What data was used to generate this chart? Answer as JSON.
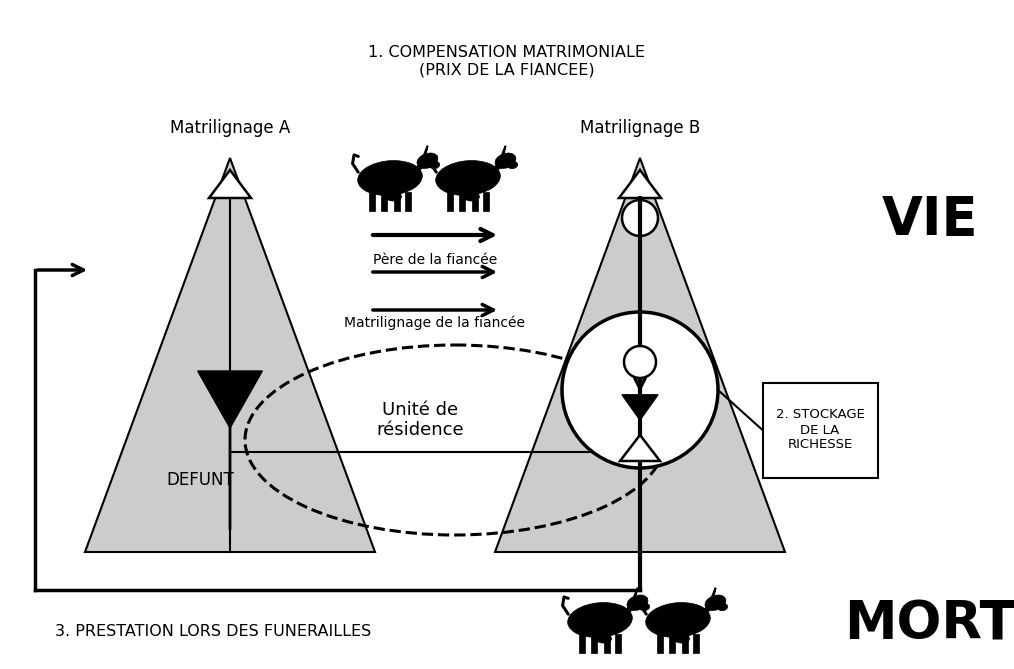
{
  "title_top": "1. COMPENSATION MATRIMONIALE\n(PRIX DE LA FIANCEE)",
  "label_matA": "Matrilignage A",
  "label_matB": "Matrilignage B",
  "label_vie": "VIE",
  "label_mort": "MORT",
  "label_defunt": "DEFUNT",
  "label_unite": "Unité de\nrésidence",
  "label_pere": "Père de la fiancée",
  "label_matrilignage_fiancee": "Matrilignage de la fiancée",
  "label_stockage": "2. STOCKAGE\nDE LA\nRICHESSE",
  "label_prestation": "3. PRESTATION LORS DES FUNERAILLES",
  "bg_color": "#ffffff",
  "tri_color": "#cccccc",
  "tri_edge_color": "#000000"
}
